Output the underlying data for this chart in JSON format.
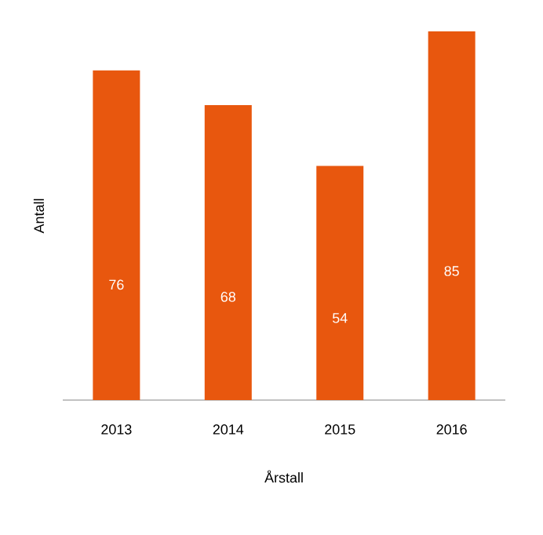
{
  "chart_data": {
    "type": "bar",
    "xlabel": "Årstall",
    "ylabel": "Antall",
    "categories": [
      "2013",
      "2014",
      "2015",
      "2016"
    ],
    "values": [
      76,
      68,
      54,
      85
    ],
    "color": "#e8570e",
    "data_labels": true
  }
}
